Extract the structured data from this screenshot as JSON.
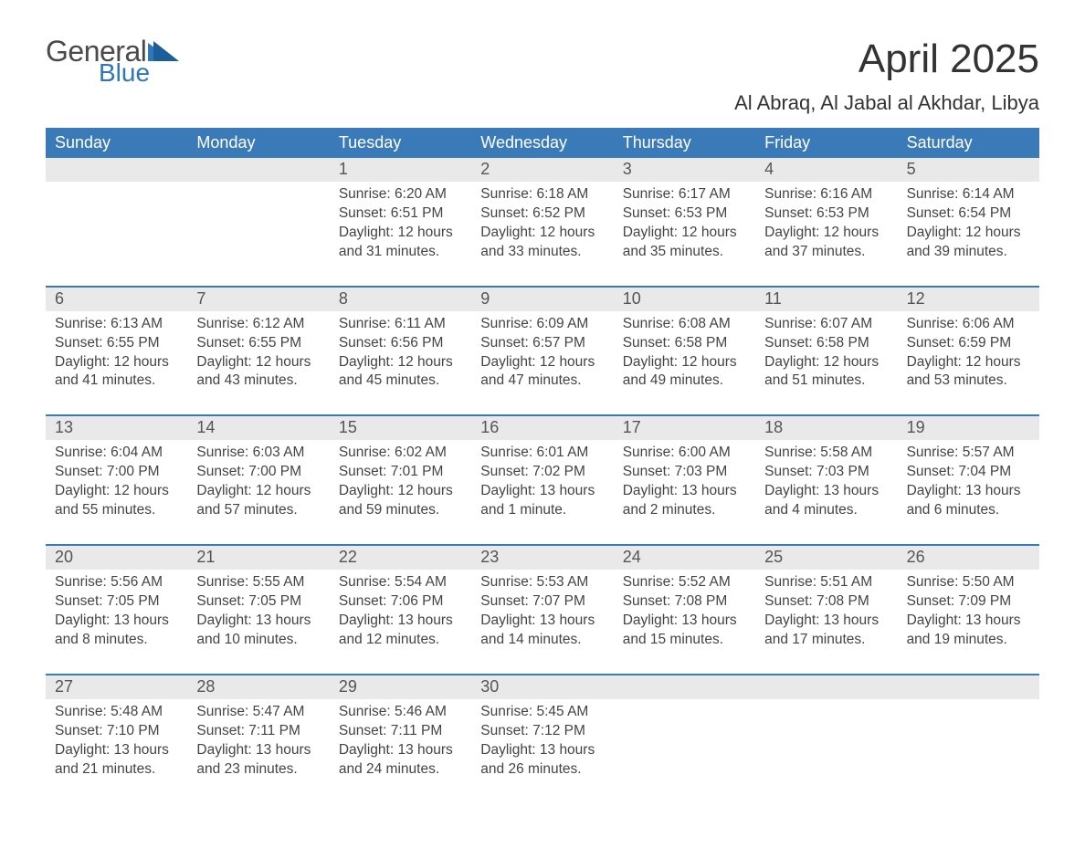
{
  "brand": {
    "word1": "General",
    "word2": "Blue"
  },
  "title": "April 2025",
  "subtitle": "Al Abraq, Al Jabal al Akhdar, Libya",
  "colors": {
    "header_bar": "#3a7ab8",
    "daynum_band": "#e9e9e9",
    "week_divider": "#3a7ab8",
    "text": "#333333",
    "logo_gray": "#4a4a4a",
    "logo_blue": "#2f77bb",
    "background": "#ffffff"
  },
  "days_of_week": [
    "Sunday",
    "Monday",
    "Tuesday",
    "Wednesday",
    "Thursday",
    "Friday",
    "Saturday"
  ],
  "weeks": [
    [
      {
        "n": "",
        "sunrise": "",
        "sunset": "",
        "daylight1": "",
        "daylight2": ""
      },
      {
        "n": "",
        "sunrise": "",
        "sunset": "",
        "daylight1": "",
        "daylight2": ""
      },
      {
        "n": "1",
        "sunrise": "Sunrise: 6:20 AM",
        "sunset": "Sunset: 6:51 PM",
        "daylight1": "Daylight: 12 hours",
        "daylight2": "and 31 minutes."
      },
      {
        "n": "2",
        "sunrise": "Sunrise: 6:18 AM",
        "sunset": "Sunset: 6:52 PM",
        "daylight1": "Daylight: 12 hours",
        "daylight2": "and 33 minutes."
      },
      {
        "n": "3",
        "sunrise": "Sunrise: 6:17 AM",
        "sunset": "Sunset: 6:53 PM",
        "daylight1": "Daylight: 12 hours",
        "daylight2": "and 35 minutes."
      },
      {
        "n": "4",
        "sunrise": "Sunrise: 6:16 AM",
        "sunset": "Sunset: 6:53 PM",
        "daylight1": "Daylight: 12 hours",
        "daylight2": "and 37 minutes."
      },
      {
        "n": "5",
        "sunrise": "Sunrise: 6:14 AM",
        "sunset": "Sunset: 6:54 PM",
        "daylight1": "Daylight: 12 hours",
        "daylight2": "and 39 minutes."
      }
    ],
    [
      {
        "n": "6",
        "sunrise": "Sunrise: 6:13 AM",
        "sunset": "Sunset: 6:55 PM",
        "daylight1": "Daylight: 12 hours",
        "daylight2": "and 41 minutes."
      },
      {
        "n": "7",
        "sunrise": "Sunrise: 6:12 AM",
        "sunset": "Sunset: 6:55 PM",
        "daylight1": "Daylight: 12 hours",
        "daylight2": "and 43 minutes."
      },
      {
        "n": "8",
        "sunrise": "Sunrise: 6:11 AM",
        "sunset": "Sunset: 6:56 PM",
        "daylight1": "Daylight: 12 hours",
        "daylight2": "and 45 minutes."
      },
      {
        "n": "9",
        "sunrise": "Sunrise: 6:09 AM",
        "sunset": "Sunset: 6:57 PM",
        "daylight1": "Daylight: 12 hours",
        "daylight2": "and 47 minutes."
      },
      {
        "n": "10",
        "sunrise": "Sunrise: 6:08 AM",
        "sunset": "Sunset: 6:58 PM",
        "daylight1": "Daylight: 12 hours",
        "daylight2": "and 49 minutes."
      },
      {
        "n": "11",
        "sunrise": "Sunrise: 6:07 AM",
        "sunset": "Sunset: 6:58 PM",
        "daylight1": "Daylight: 12 hours",
        "daylight2": "and 51 minutes."
      },
      {
        "n": "12",
        "sunrise": "Sunrise: 6:06 AM",
        "sunset": "Sunset: 6:59 PM",
        "daylight1": "Daylight: 12 hours",
        "daylight2": "and 53 minutes."
      }
    ],
    [
      {
        "n": "13",
        "sunrise": "Sunrise: 6:04 AM",
        "sunset": "Sunset: 7:00 PM",
        "daylight1": "Daylight: 12 hours",
        "daylight2": "and 55 minutes."
      },
      {
        "n": "14",
        "sunrise": "Sunrise: 6:03 AM",
        "sunset": "Sunset: 7:00 PM",
        "daylight1": "Daylight: 12 hours",
        "daylight2": "and 57 minutes."
      },
      {
        "n": "15",
        "sunrise": "Sunrise: 6:02 AM",
        "sunset": "Sunset: 7:01 PM",
        "daylight1": "Daylight: 12 hours",
        "daylight2": "and 59 minutes."
      },
      {
        "n": "16",
        "sunrise": "Sunrise: 6:01 AM",
        "sunset": "Sunset: 7:02 PM",
        "daylight1": "Daylight: 13 hours",
        "daylight2": "and 1 minute."
      },
      {
        "n": "17",
        "sunrise": "Sunrise: 6:00 AM",
        "sunset": "Sunset: 7:03 PM",
        "daylight1": "Daylight: 13 hours",
        "daylight2": "and 2 minutes."
      },
      {
        "n": "18",
        "sunrise": "Sunrise: 5:58 AM",
        "sunset": "Sunset: 7:03 PM",
        "daylight1": "Daylight: 13 hours",
        "daylight2": "and 4 minutes."
      },
      {
        "n": "19",
        "sunrise": "Sunrise: 5:57 AM",
        "sunset": "Sunset: 7:04 PM",
        "daylight1": "Daylight: 13 hours",
        "daylight2": "and 6 minutes."
      }
    ],
    [
      {
        "n": "20",
        "sunrise": "Sunrise: 5:56 AM",
        "sunset": "Sunset: 7:05 PM",
        "daylight1": "Daylight: 13 hours",
        "daylight2": "and 8 minutes."
      },
      {
        "n": "21",
        "sunrise": "Sunrise: 5:55 AM",
        "sunset": "Sunset: 7:05 PM",
        "daylight1": "Daylight: 13 hours",
        "daylight2": "and 10 minutes."
      },
      {
        "n": "22",
        "sunrise": "Sunrise: 5:54 AM",
        "sunset": "Sunset: 7:06 PM",
        "daylight1": "Daylight: 13 hours",
        "daylight2": "and 12 minutes."
      },
      {
        "n": "23",
        "sunrise": "Sunrise: 5:53 AM",
        "sunset": "Sunset: 7:07 PM",
        "daylight1": "Daylight: 13 hours",
        "daylight2": "and 14 minutes."
      },
      {
        "n": "24",
        "sunrise": "Sunrise: 5:52 AM",
        "sunset": "Sunset: 7:08 PM",
        "daylight1": "Daylight: 13 hours",
        "daylight2": "and 15 minutes."
      },
      {
        "n": "25",
        "sunrise": "Sunrise: 5:51 AM",
        "sunset": "Sunset: 7:08 PM",
        "daylight1": "Daylight: 13 hours",
        "daylight2": "and 17 minutes."
      },
      {
        "n": "26",
        "sunrise": "Sunrise: 5:50 AM",
        "sunset": "Sunset: 7:09 PM",
        "daylight1": "Daylight: 13 hours",
        "daylight2": "and 19 minutes."
      }
    ],
    [
      {
        "n": "27",
        "sunrise": "Sunrise: 5:48 AM",
        "sunset": "Sunset: 7:10 PM",
        "daylight1": "Daylight: 13 hours",
        "daylight2": "and 21 minutes."
      },
      {
        "n": "28",
        "sunrise": "Sunrise: 5:47 AM",
        "sunset": "Sunset: 7:11 PM",
        "daylight1": "Daylight: 13 hours",
        "daylight2": "and 23 minutes."
      },
      {
        "n": "29",
        "sunrise": "Sunrise: 5:46 AM",
        "sunset": "Sunset: 7:11 PM",
        "daylight1": "Daylight: 13 hours",
        "daylight2": "and 24 minutes."
      },
      {
        "n": "30",
        "sunrise": "Sunrise: 5:45 AM",
        "sunset": "Sunset: 7:12 PM",
        "daylight1": "Daylight: 13 hours",
        "daylight2": "and 26 minutes."
      },
      {
        "n": "",
        "sunrise": "",
        "sunset": "",
        "daylight1": "",
        "daylight2": ""
      },
      {
        "n": "",
        "sunrise": "",
        "sunset": "",
        "daylight1": "",
        "daylight2": ""
      },
      {
        "n": "",
        "sunrise": "",
        "sunset": "",
        "daylight1": "",
        "daylight2": ""
      }
    ]
  ]
}
